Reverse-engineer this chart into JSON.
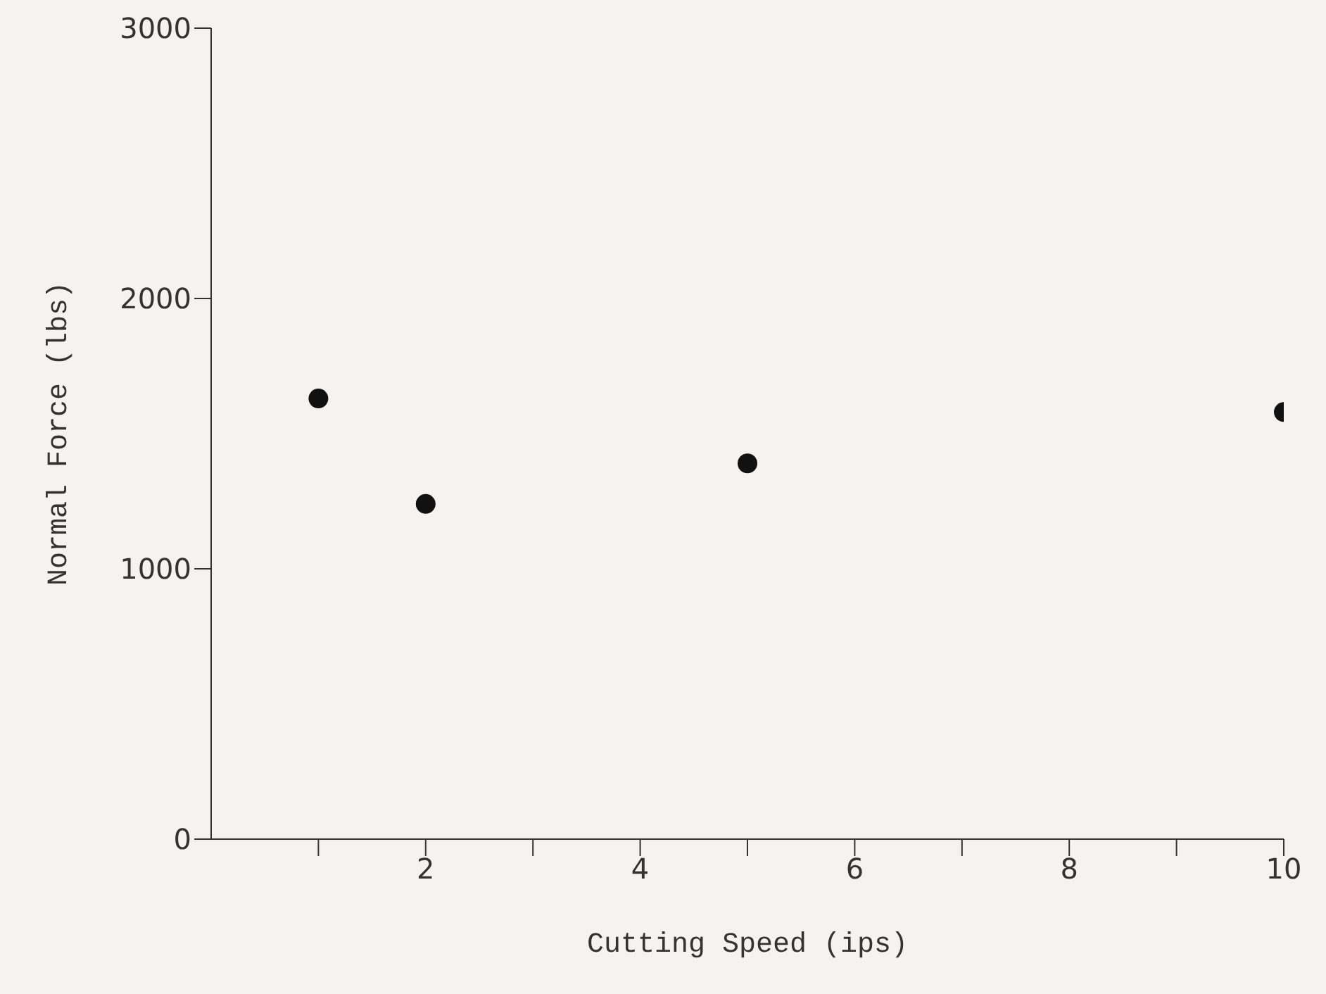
{
  "chart_data": {
    "type": "scatter",
    "xlabel": "Cutting Speed (ips)",
    "ylabel": "Normal Force (lbs)",
    "x": [
      1,
      2,
      5,
      10
    ],
    "series": [
      {
        "color": "#111111",
        "values": [
          1630,
          1240,
          1390,
          1580
        ]
      }
    ],
    "xlim": [
      0,
      10
    ],
    "xticks": [
      {
        "value": 1,
        "label": null
      },
      2,
      {
        "value": 3,
        "label": null
      },
      4,
      {
        "value": 5,
        "label": null
      },
      6,
      {
        "value": 7,
        "label": null
      },
      8,
      {
        "value": 9,
        "label": null
      },
      10
    ],
    "ylim": [
      0,
      3000
    ],
    "yticks": [
      0,
      1000,
      2000,
      3000
    ],
    "grid": false,
    "legend": false,
    "marker": "circle"
  }
}
